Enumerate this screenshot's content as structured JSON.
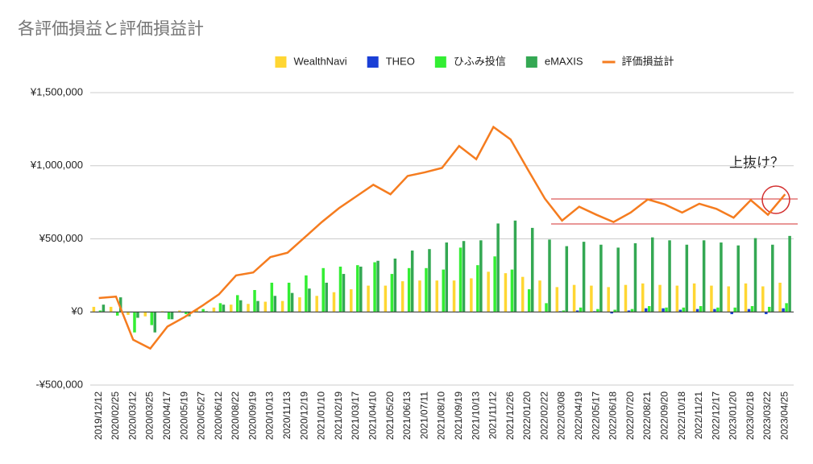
{
  "chart_data": {
    "type": "bar-line",
    "title": "各評価損益と評価損益計",
    "annotation": "上抜け？",
    "categories": [
      "2019/12/12",
      "2020/02/25",
      "2020/03/12",
      "2020/03/25",
      "2020/04/17",
      "2020/05/19",
      "2020/05/27",
      "2020/06/12",
      "2020/08/22",
      "2020/09/19",
      "2020/10/13",
      "2020/11/13",
      "2020/12/19",
      "2021/01/10",
      "2021/02/19",
      "2021/03/17",
      "2021/04/10",
      "2021/05/20",
      "2021/06/13",
      "2021/07/11",
      "2021/08/10",
      "2021/09/19",
      "2021/10/13",
      "2021/11/12",
      "2021/12/26",
      "2022/01/20",
      "2022/02/22",
      "2022/03/08",
      "2022/04/19",
      "2022/05/17",
      "2022/06/18",
      "2022/07/20",
      "2022/08/21",
      "2022/09/20",
      "2022/10/18",
      "2022/11/21",
      "2022/12/17",
      "2023/01/20",
      "2023/02/18",
      "2023/03/22",
      "2023/04/25"
    ],
    "series": [
      {
        "name": "WealthNavi",
        "color": "#ffd633",
        "kind": "bar",
        "values": [
          35000,
          35000,
          -20000,
          -30000,
          5000,
          10000,
          15000,
          30000,
          50000,
          55000,
          70000,
          75000,
          100000,
          110000,
          135000,
          155000,
          180000,
          180000,
          210000,
          215000,
          215000,
          215000,
          230000,
          275000,
          265000,
          240000,
          215000,
          170000,
          185000,
          180000,
          170000,
          185000,
          195000,
          185000,
          180000,
          195000,
          180000,
          175000,
          195000,
          175000,
          200000
        ]
      },
      {
        "name": "THEO",
        "color": "#1a3fd6",
        "kind": "bar",
        "values": [
          0,
          0,
          0,
          0,
          0,
          0,
          0,
          0,
          0,
          0,
          0,
          0,
          0,
          0,
          0,
          0,
          0,
          0,
          0,
          0,
          0,
          0,
          0,
          0,
          0,
          0,
          0,
          5000,
          10000,
          5000,
          -10000,
          10000,
          25000,
          25000,
          15000,
          20000,
          20000,
          -15000,
          20000,
          -15000,
          25000
        ]
      },
      {
        "name": "ひふみ投信",
        "color": "#33ee33",
        "kind": "bar",
        "values": [
          10000,
          -25000,
          -140000,
          -90000,
          -50000,
          -15000,
          20000,
          60000,
          115000,
          150000,
          200000,
          200000,
          250000,
          300000,
          310000,
          320000,
          340000,
          260000,
          300000,
          300000,
          290000,
          440000,
          320000,
          380000,
          290000,
          155000,
          60000,
          10000,
          30000,
          20000,
          15000,
          20000,
          40000,
          30000,
          30000,
          40000,
          30000,
          30000,
          40000,
          35000,
          60000
        ]
      },
      {
        "name": "eMAXIS",
        "color": "#34a853",
        "kind": "bar",
        "values": [
          50000,
          100000,
          -40000,
          -140000,
          -50000,
          -30000,
          5000,
          50000,
          80000,
          75000,
          110000,
          130000,
          160000,
          200000,
          260000,
          310000,
          350000,
          365000,
          420000,
          430000,
          475000,
          485000,
          490000,
          605000,
          625000,
          575000,
          495000,
          450000,
          480000,
          460000,
          440000,
          470000,
          510000,
          490000,
          460000,
          490000,
          475000,
          455000,
          505000,
          460000,
          520000
        ]
      },
      {
        "name": "評価損益計",
        "color": "#f57c1f",
        "kind": "line",
        "values": [
          95000,
          105000,
          -190000,
          -250000,
          -100000,
          -35000,
          40000,
          120000,
          250000,
          270000,
          375000,
          405000,
          510000,
          615000,
          710000,
          790000,
          870000,
          805000,
          930000,
          955000,
          985000,
          1135000,
          1045000,
          1265000,
          1180000,
          975000,
          775000,
          625000,
          720000,
          665000,
          615000,
          680000,
          770000,
          735000,
          680000,
          740000,
          705000,
          645000,
          765000,
          665000,
          805000
        ]
      }
    ],
    "ylim": [
      -500000,
      1500000
    ],
    "yticks": [
      {
        "value": -500000,
        "label": "-¥500,000"
      },
      {
        "value": 0,
        "label": "¥0"
      },
      {
        "value": 500000,
        "label": "¥500,000"
      },
      {
        "value": 1000000,
        "label": "¥1,000,000"
      },
      {
        "value": 1500000,
        "label": "¥1,500,000"
      }
    ],
    "grid": true
  }
}
